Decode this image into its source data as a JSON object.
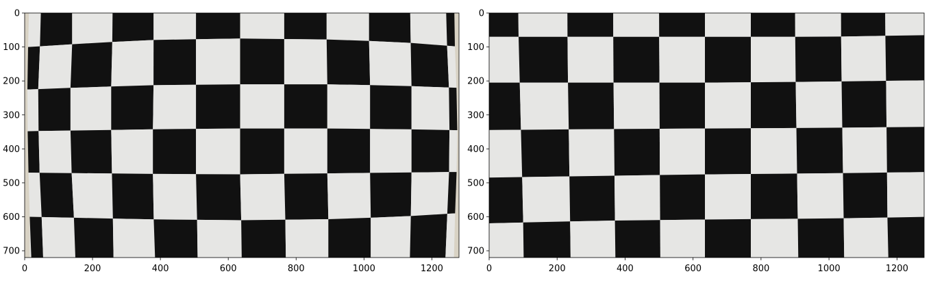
{
  "chart_data": [
    {
      "type": "image",
      "image_width": 1280,
      "image_height": 720,
      "xlim": [
        0,
        1280
      ],
      "ylim": [
        720,
        0
      ],
      "xticks": [
        0,
        200,
        400,
        600,
        800,
        1000,
        1200
      ],
      "yticks": [
        0,
        100,
        200,
        300,
        400,
        500,
        600,
        700
      ],
      "content": "distorted checkerboard calibration image",
      "grid": false,
      "board": {
        "col_lines": [
          [
            [
              15,
              0
            ],
            [
              10,
              100
            ],
            [
              8,
              200
            ],
            [
              8,
              300
            ],
            [
              10,
              400
            ],
            [
              12,
              500
            ],
            [
              15,
              600
            ],
            [
              20,
              720
            ]
          ],
          [
            [
              50,
              0
            ],
            [
              45,
              100
            ],
            [
              40,
              200
            ],
            [
              40,
              300
            ],
            [
              42,
              400
            ],
            [
              45,
              500
            ],
            [
              50,
              600
            ],
            [
              55,
              720
            ]
          ],
          [
            [
              140,
              0
            ],
            [
              140,
              100
            ],
            [
              135,
              200
            ],
            [
              135,
              300
            ],
            [
              135,
              400
            ],
            [
              140,
              500
            ],
            [
              145,
              600
            ],
            [
              150,
              720
            ]
          ],
          [
            [
              260,
              0
            ],
            [
              258,
              100
            ],
            [
              255,
              200
            ],
            [
              255,
              300
            ],
            [
              255,
              400
            ],
            [
              258,
              500
            ],
            [
              260,
              600
            ],
            [
              262,
              720
            ]
          ],
          [
            [
              380,
              0
            ],
            [
              380,
              100
            ],
            [
              380,
              200
            ],
            [
              378,
              300
            ],
            [
              378,
              400
            ],
            [
              378,
              500
            ],
            [
              380,
              600
            ],
            [
              385,
              720
            ]
          ],
          [
            [
              505,
              0
            ],
            [
              505,
              100
            ],
            [
              505,
              200
            ],
            [
              505,
              300
            ],
            [
              505,
              400
            ],
            [
              505,
              500
            ],
            [
              508,
              600
            ],
            [
              510,
              720
            ]
          ],
          [
            [
              635,
              0
            ],
            [
              635,
              100
            ],
            [
              635,
              200
            ],
            [
              635,
              300
            ],
            [
              635,
              400
            ],
            [
              635,
              500
            ],
            [
              638,
              600
            ],
            [
              640,
              720
            ]
          ],
          [
            [
              765,
              0
            ],
            [
              765,
              100
            ],
            [
              765,
              200
            ],
            [
              765,
              300
            ],
            [
              765,
              400
            ],
            [
              765,
              500
            ],
            [
              768,
              600
            ],
            [
              770,
              720
            ]
          ],
          [
            [
              890,
              0
            ],
            [
              890,
              100
            ],
            [
              892,
              200
            ],
            [
              892,
              300
            ],
            [
              892,
              400
            ],
            [
              892,
              500
            ],
            [
              895,
              600
            ],
            [
              895,
              720
            ]
          ],
          [
            [
              1015,
              0
            ],
            [
              1015,
              100
            ],
            [
              1018,
              200
            ],
            [
              1018,
              300
            ],
            [
              1018,
              400
            ],
            [
              1018,
              500
            ],
            [
              1020,
              600
            ],
            [
              1020,
              720
            ]
          ],
          [
            [
              1135,
              0
            ],
            [
              1138,
              100
            ],
            [
              1140,
              200
            ],
            [
              1140,
              300
            ],
            [
              1140,
              400
            ],
            [
              1140,
              500
            ],
            [
              1138,
              600
            ],
            [
              1135,
              720
            ]
          ],
          [
            [
              1240,
              0
            ],
            [
              1245,
              100
            ],
            [
              1250,
              200
            ],
            [
              1252,
              300
            ],
            [
              1252,
              400
            ],
            [
              1250,
              500
            ],
            [
              1245,
              600
            ],
            [
              1240,
              720
            ]
          ],
          [
            [
              1265,
              0
            ],
            [
              1268,
              100
            ],
            [
              1272,
              200
            ],
            [
              1275,
              300
            ],
            [
              1275,
              400
            ],
            [
              1272,
              500
            ],
            [
              1268,
              600
            ],
            [
              1265,
              720
            ]
          ]
        ],
        "row_lines": [
          [
            [
              15,
              -90
            ],
            [
              500,
              -85
            ],
            [
              1265,
              -80
            ]
          ],
          [
            [
              15,
              100
            ],
            [
              170,
              90
            ],
            [
              350,
              80
            ],
            [
              620,
              75
            ],
            [
              900,
              78
            ],
            [
              1100,
              85
            ],
            [
              1265,
              98
            ]
          ],
          [
            [
              15,
              225
            ],
            [
              200,
              218
            ],
            [
              400,
              212
            ],
            [
              640,
              210
            ],
            [
              900,
              210
            ],
            [
              1100,
              214
            ],
            [
              1265,
              220
            ]
          ],
          [
            [
              15,
              348
            ],
            [
              200,
              345
            ],
            [
              400,
              342
            ],
            [
              640,
              340
            ],
            [
              900,
              340
            ],
            [
              1100,
              342
            ],
            [
              1265,
              345
            ]
          ],
          [
            [
              15,
              470
            ],
            [
              200,
              472
            ],
            [
              400,
              474
            ],
            [
              640,
              475
            ],
            [
              900,
              472
            ],
            [
              1100,
              470
            ],
            [
              1265,
              468
            ]
          ],
          [
            [
              15,
              600
            ],
            [
              200,
              604
            ],
            [
              400,
              608
            ],
            [
              640,
              610
            ],
            [
              900,
              607
            ],
            [
              1100,
              600
            ],
            [
              1265,
              590
            ]
          ],
          [
            [
              15,
              730
            ],
            [
              200,
              738
            ],
            [
              400,
              742
            ],
            [
              640,
              745
            ],
            [
              900,
              742
            ],
            [
              1100,
              735
            ],
            [
              1265,
              720
            ]
          ]
        ],
        "first_black": [
          0,
          1
        ],
        "edge_strip_left": 15,
        "edge_strip_right": 1265
      }
    },
    {
      "type": "image",
      "image_width": 1280,
      "image_height": 720,
      "xlim": [
        0,
        1280
      ],
      "ylim": [
        720,
        0
      ],
      "xticks": [
        0,
        200,
        400,
        600,
        800,
        1000,
        1200
      ],
      "yticks": [
        0,
        100,
        200,
        300,
        400,
        500,
        600,
        700
      ],
      "content": "undistorted checkerboard image",
      "grid": false,
      "board": {
        "col_lines": [
          [
            [
              -40,
              0
            ],
            [
              -40,
              720
            ]
          ],
          [
            [
              85,
              0
            ],
            [
              90,
              200
            ],
            [
              95,
              400
            ],
            [
              100,
              600
            ],
            [
              102,
              720
            ]
          ],
          [
            [
              230,
              0
            ],
            [
              232,
              200
            ],
            [
              235,
              400
            ],
            [
              238,
              600
            ],
            [
              240,
              720
            ]
          ],
          [
            [
              365,
              0
            ],
            [
              366,
              200
            ],
            [
              368,
              400
            ],
            [
              370,
              600
            ],
            [
              372,
              720
            ]
          ],
          [
            [
              500,
              0
            ],
            [
              501,
              200
            ],
            [
              502,
              400
            ],
            [
              503,
              600
            ],
            [
              504,
              720
            ]
          ],
          [
            [
              635,
              0
            ],
            [
              635,
              200
            ],
            [
              635,
              400
            ],
            [
              635,
              600
            ],
            [
              635,
              720
            ]
          ],
          [
            [
              770,
              0
            ],
            [
              770,
              200
            ],
            [
              770,
              400
            ],
            [
              770,
              600
            ],
            [
              770,
              720
            ]
          ],
          [
            [
              900,
              0
            ],
            [
              902,
              200
            ],
            [
              905,
              400
            ],
            [
              908,
              600
            ],
            [
              910,
              720
            ]
          ],
          [
            [
              1035,
              0
            ],
            [
              1037,
              200
            ],
            [
              1040,
              400
            ],
            [
              1043,
              600
            ],
            [
              1045,
              720
            ]
          ],
          [
            [
              1165,
              0
            ],
            [
              1168,
              200
            ],
            [
              1170,
              400
            ],
            [
              1172,
              600
            ],
            [
              1175,
              720
            ]
          ],
          [
            [
              1300,
              0
            ],
            [
              1300,
              720
            ]
          ]
        ],
        "row_lines": [
          [
            [
              -40,
              -65
            ],
            [
              1300,
              -75
            ]
          ],
          [
            [
              -40,
              70
            ],
            [
              300,
              70
            ],
            [
              640,
              70
            ],
            [
              1000,
              70
            ],
            [
              1300,
              65
            ]
          ],
          [
            [
              -40,
              205
            ],
            [
              300,
              205
            ],
            [
              640,
              205
            ],
            [
              1000,
              202
            ],
            [
              1300,
              198
            ]
          ],
          [
            [
              -40,
              345
            ],
            [
              300,
              342
            ],
            [
              640,
              340
            ],
            [
              1000,
              338
            ],
            [
              1300,
              335
            ]
          ],
          [
            [
              -40,
              485
            ],
            [
              300,
              480
            ],
            [
              640,
              475
            ],
            [
              1000,
              472
            ],
            [
              1300,
              468
            ]
          ],
          [
            [
              -40,
              620
            ],
            [
              300,
              612
            ],
            [
              640,
              608
            ],
            [
              1000,
              605
            ],
            [
              1300,
              600
            ]
          ],
          [
            [
              -40,
              755
            ],
            [
              300,
              748
            ],
            [
              640,
              742
            ],
            [
              1000,
              738
            ],
            [
              1300,
              732
            ]
          ]
        ],
        "first_black": [
          0,
          0
        ],
        "edge_strip_left": null,
        "edge_strip_right": null
      }
    }
  ],
  "colors": {
    "black_square": "#111111",
    "white_square": "#e6e6e4",
    "edge_strip": "#d8d2c4",
    "axes": "#000000"
  }
}
